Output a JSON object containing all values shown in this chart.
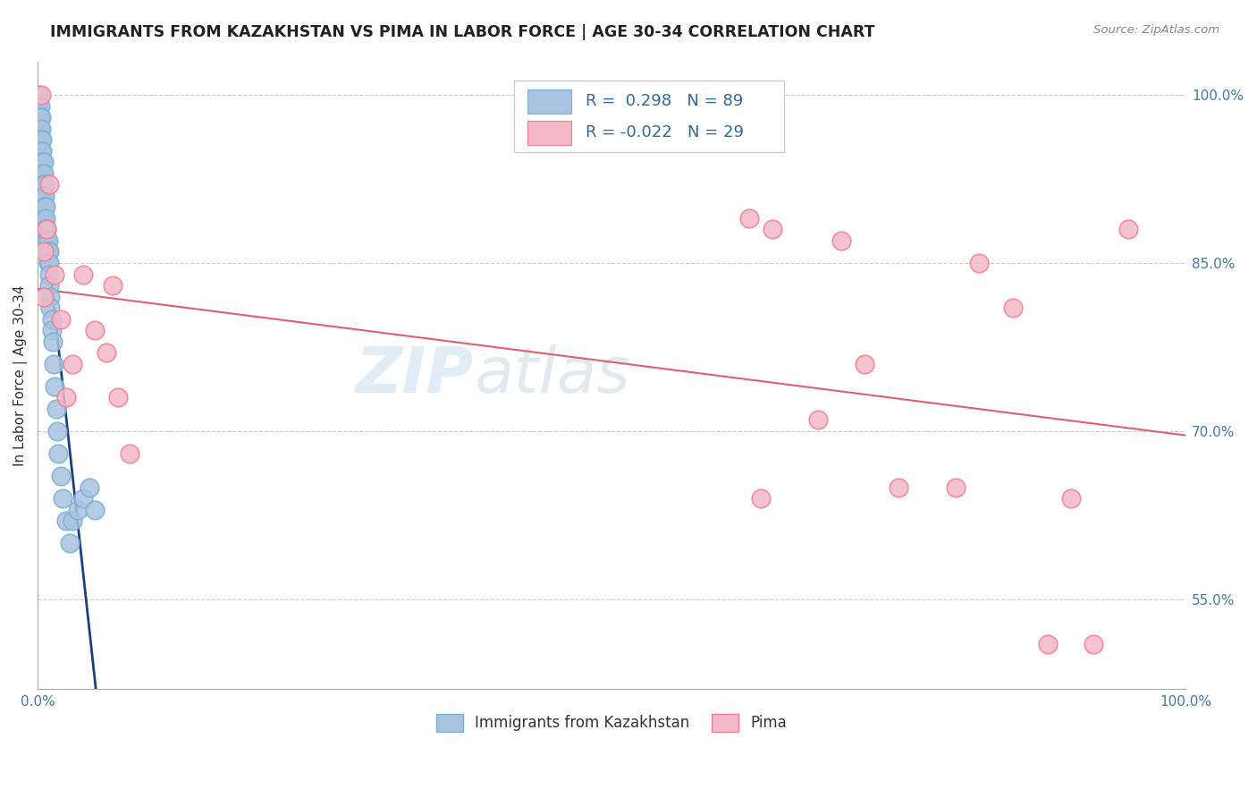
{
  "title": "IMMIGRANTS FROM KAZAKHSTAN VS PIMA IN LABOR FORCE | AGE 30-34 CORRELATION CHART",
  "source_text": "Source: ZipAtlas.com",
  "ylabel": "In Labor Force | Age 30-34",
  "xlim": [
    0.0,
    1.0
  ],
  "ylim": [
    0.47,
    1.03
  ],
  "x_ticks": [
    0.0,
    0.1,
    0.2,
    0.3,
    0.4,
    0.5,
    0.6,
    0.7,
    0.8,
    0.9,
    1.0
  ],
  "x_tick_labels": [
    "0.0%",
    "",
    "",
    "",
    "",
    "",
    "",
    "",
    "",
    "",
    "100.0%"
  ],
  "y_ticks": [
    0.55,
    0.7,
    0.85,
    1.0
  ],
  "y_tick_labels": [
    "55.0%",
    "70.0%",
    "85.0%",
    "100.0%"
  ],
  "blue_R": 0.298,
  "blue_N": 89,
  "pink_R": -0.022,
  "pink_N": 29,
  "legend1_label": "Immigrants from Kazakhstan",
  "legend2_label": "Pima",
  "watermark_part1": "ZIP",
  "watermark_part2": "atlas",
  "blue_color": "#a8c4e0",
  "blue_edge_color": "#7aafd4",
  "pink_color": "#f4b8c8",
  "pink_edge_color": "#f08090",
  "blue_line_color": "#1a4080",
  "pink_line_color": "#e06070",
  "blue_scatter_x": [
    0.001,
    0.001,
    0.001,
    0.001,
    0.001,
    0.001,
    0.001,
    0.001,
    0.001,
    0.001,
    0.002,
    0.002,
    0.002,
    0.002,
    0.002,
    0.002,
    0.002,
    0.002,
    0.002,
    0.002,
    0.002,
    0.002,
    0.003,
    0.003,
    0.003,
    0.003,
    0.003,
    0.003,
    0.003,
    0.003,
    0.003,
    0.003,
    0.003,
    0.003,
    0.004,
    0.004,
    0.004,
    0.004,
    0.004,
    0.004,
    0.004,
    0.004,
    0.004,
    0.005,
    0.005,
    0.005,
    0.005,
    0.005,
    0.005,
    0.005,
    0.005,
    0.006,
    0.006,
    0.006,
    0.006,
    0.006,
    0.007,
    0.007,
    0.007,
    0.007,
    0.008,
    0.008,
    0.008,
    0.009,
    0.009,
    0.009,
    0.01,
    0.01,
    0.01,
    0.01,
    0.011,
    0.011,
    0.012,
    0.012,
    0.013,
    0.014,
    0.015,
    0.016,
    0.017,
    0.018,
    0.02,
    0.022,
    0.025,
    0.028,
    0.03,
    0.035,
    0.04,
    0.045,
    0.05
  ],
  "blue_scatter_y": [
    1.0,
    0.99,
    0.98,
    0.97,
    0.96,
    0.95,
    0.94,
    0.93,
    0.92,
    0.91,
    0.99,
    0.98,
    0.97,
    0.96,
    0.95,
    0.94,
    0.93,
    0.92,
    0.91,
    0.9,
    0.89,
    0.88,
    0.98,
    0.97,
    0.96,
    0.95,
    0.94,
    0.93,
    0.92,
    0.91,
    0.9,
    0.89,
    0.88,
    0.87,
    0.96,
    0.95,
    0.94,
    0.93,
    0.92,
    0.91,
    0.9,
    0.89,
    0.88,
    0.94,
    0.93,
    0.92,
    0.91,
    0.9,
    0.89,
    0.88,
    0.87,
    0.92,
    0.91,
    0.9,
    0.89,
    0.88,
    0.9,
    0.89,
    0.88,
    0.87,
    0.88,
    0.87,
    0.86,
    0.87,
    0.86,
    0.85,
    0.86,
    0.85,
    0.84,
    0.83,
    0.82,
    0.81,
    0.8,
    0.79,
    0.78,
    0.76,
    0.74,
    0.72,
    0.7,
    0.68,
    0.66,
    0.64,
    0.62,
    0.6,
    0.62,
    0.63,
    0.64,
    0.65,
    0.63
  ],
  "pink_scatter_x": [
    0.003,
    0.005,
    0.005,
    0.008,
    0.01,
    0.015,
    0.02,
    0.025,
    0.03,
    0.04,
    0.05,
    0.06,
    0.065,
    0.07,
    0.08,
    0.62,
    0.63,
    0.64,
    0.68,
    0.7,
    0.72,
    0.75,
    0.8,
    0.82,
    0.85,
    0.88,
    0.9,
    0.92,
    0.95
  ],
  "pink_scatter_y": [
    1.0,
    0.86,
    0.82,
    0.88,
    0.92,
    0.84,
    0.8,
    0.73,
    0.76,
    0.84,
    0.79,
    0.77,
    0.83,
    0.73,
    0.68,
    0.89,
    0.64,
    0.88,
    0.71,
    0.87,
    0.76,
    0.65,
    0.65,
    0.85,
    0.81,
    0.51,
    0.64,
    0.51,
    0.88
  ]
}
